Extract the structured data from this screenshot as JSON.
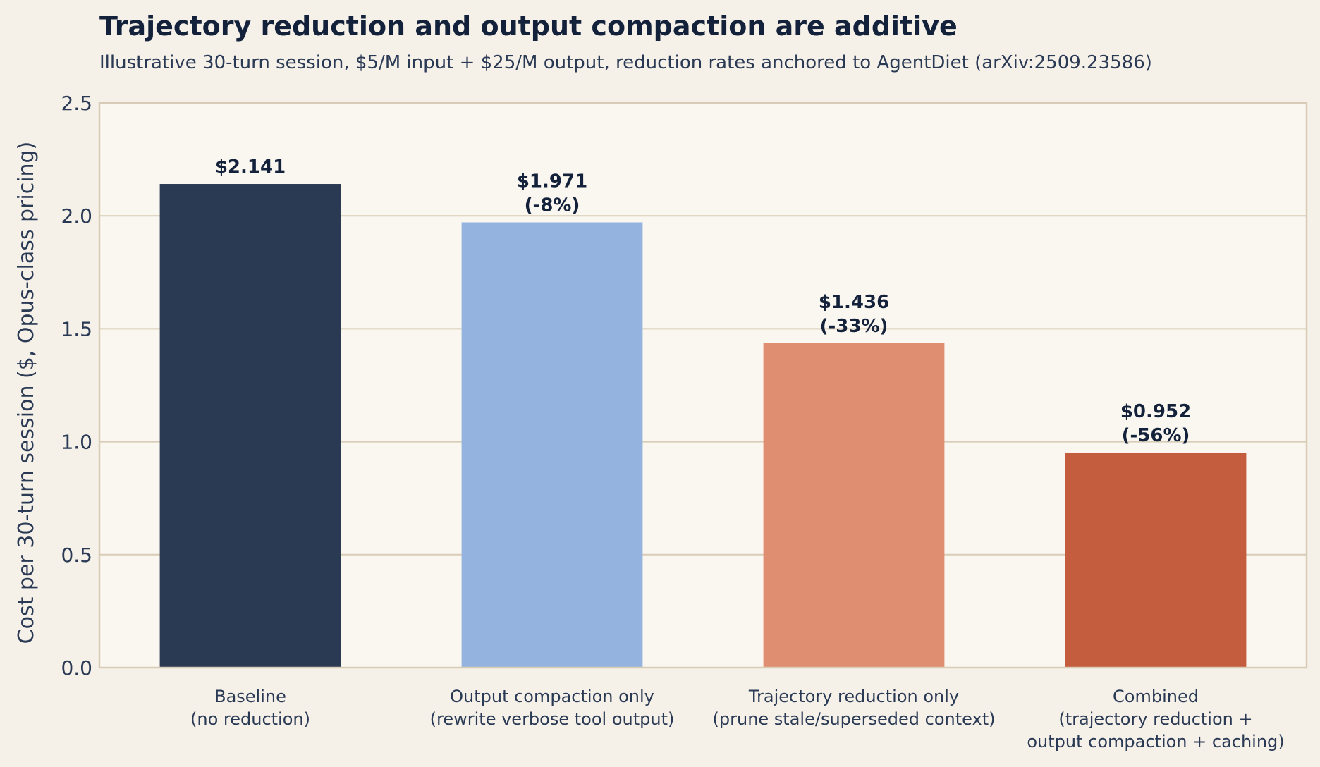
{
  "chart_data": {
    "type": "bar",
    "title": "Trajectory reduction and output compaction are additive",
    "subtitle": "Illustrative 30-turn session, $5/M input + $25/M output, reduction rates anchored to AgentDiet (arXiv:2509.23586)",
    "ylabel": "Cost per 30-turn session ($, Opus-class pricing)",
    "xlabel": "",
    "ylim": [
      0,
      2.5
    ],
    "yticks": [
      "0.0",
      "0.5",
      "1.0",
      "1.5",
      "2.0",
      "2.5"
    ],
    "ytick_values": [
      0,
      0.5,
      1.0,
      1.5,
      2.0,
      2.5
    ],
    "grid": "horizontal",
    "categories": [
      [
        "Baseline",
        "(no reduction)"
      ],
      [
        "Output compaction only",
        "(rewrite verbose tool output)"
      ],
      [
        "Trajectory reduction only",
        "(prune stale/superseded context)"
      ],
      [
        "Combined",
        "(trajectory reduction +",
        "output compaction + caching)"
      ]
    ],
    "values": [
      2.141,
      1.971,
      1.436,
      0.952
    ],
    "data_labels": [
      [
        "$2.141"
      ],
      [
        "$1.971",
        "(-8%)"
      ],
      [
        "$1.436",
        "(-33%)"
      ],
      [
        "$0.952",
        "(-56%)"
      ]
    ],
    "colors": [
      "#2b3a53",
      "#94b4df",
      "#e08e71",
      "#c45d3e"
    ],
    "plot_background": "#faf7f0",
    "page_background": "#f5f0e8",
    "grid_color": "#d8ccb6"
  }
}
